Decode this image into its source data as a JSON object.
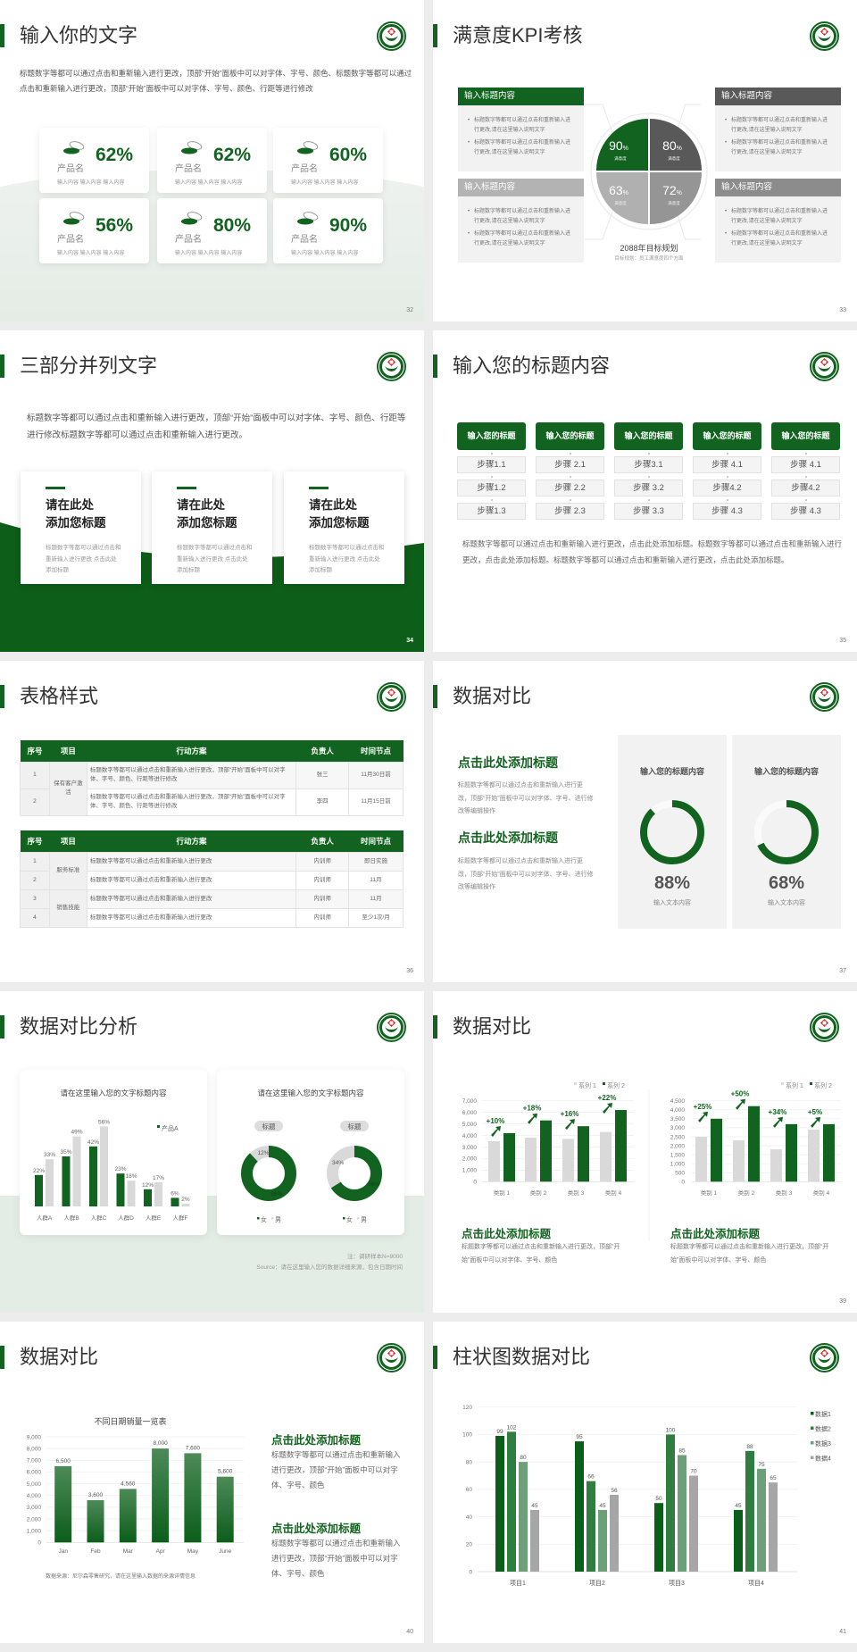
{
  "colors": {
    "brand_green": "#12631f",
    "dark_gray": "#595959",
    "mid_gray": "#8c8c8c",
    "light_gray": "#d9d9d9"
  },
  "logo_icon": "hospital-emblem-icon",
  "slides": [
    {
      "page": "32",
      "title": "输入你的文字",
      "body": "标题数字等都可以通过点击和重新输入进行更改，顶部“开始”面板中可以对字体、字号、颜色、标题数字等都可以通过点击和重新输入进行更改，顶部“开始”面板中可以对字体、字号、颜色、行距等进行修改",
      "cards": [
        {
          "name": "产品名",
          "value": "62%",
          "desc": "输入内容  输入内容  输入内容"
        },
        {
          "name": "产品名",
          "value": "62%",
          "desc": "输入内容  输入内容  输入内容"
        },
        {
          "name": "产品名",
          "value": "60%",
          "desc": "输入内容  输入内容  输入内容"
        },
        {
          "name": "产品名",
          "value": "56%",
          "desc": "输入内容  输入内容  输入内容"
        },
        {
          "name": "产品名",
          "value": "80%",
          "desc": "输入内容  输入内容  输入内容"
        },
        {
          "name": "产品名",
          "value": "90%",
          "desc": "输入内容  输入内容  输入内容"
        }
      ]
    },
    {
      "page": "33",
      "title": "满意度KPI考核",
      "boxes": [
        {
          "heading": "输入标题内容",
          "color": "#12631f",
          "bullets": [
            "标题数字等都可以通过点击和重新输入进行更改,请在这里输入说明文字",
            "标题数字等都可以通过点击和重新输入进行更改,请在这里输入说明文字"
          ]
        },
        {
          "heading": "输入标题内容",
          "color": "#595959",
          "bullets": [
            "标题数字等都可以通过点击和重新输入进行更改,请在这里输入说明文字",
            "标题数字等都可以通过点击和重新输入进行更改,请在这里输入说明文字"
          ]
        },
        {
          "heading": "输入标题内容",
          "color": "#b3b3b3",
          "bullets": [
            "标题数字等都可以通过点击和重新输入进行更改,请在这里输入说明文字",
            "标题数字等都可以通过点击和重新输入进行更改,请在这里输入说明文字"
          ]
        },
        {
          "heading": "输入标题内容",
          "color": "#8c8c8c",
          "bullets": [
            "标题数字等都可以通过点击和重新输入进行更改,请在这里输入说明文字",
            "标题数字等都可以通过点击和重新输入进行更改,请在这里输入说明文字"
          ]
        }
      ],
      "quadrants": [
        {
          "value": "90",
          "unit": "%",
          "label": "满意度",
          "color": "#12631f"
        },
        {
          "value": "80",
          "unit": "%",
          "label": "满意度",
          "color": "#595959"
        },
        {
          "value": "63",
          "unit": "%",
          "label": "满意度",
          "color": "#b0b0b0"
        },
        {
          "value": "72",
          "unit": "%",
          "label": "满意度",
          "color": "#959595"
        }
      ],
      "plan_title": "2088年目标规划",
      "plan_sub": "目标规划：员工满意度四个方面"
    },
    {
      "page": "34",
      "title": "三部分并列文字",
      "body": "标题数字等都可以通过点击和重新输入进行更改，顶部“开始”面板中可以对字体、字号、颜色、行距等进行修改标题数字等都可以通过点击和重新输入进行更改。",
      "cards": [
        {
          "line1": "请在此处",
          "line2": "添加您标题",
          "desc": "标题数字等都可以通过点击和重新输入进行更改 点击此处添加标题"
        },
        {
          "line1": "请在此处",
          "line2": "添加您标题",
          "desc": "标题数字等都可以通过点击和重新输入进行更改 点击此处添加标题"
        },
        {
          "line1": "请在此处",
          "line2": "添加您标题",
          "desc": "标题数字等都可以通过点击和重新输入进行更改 点击此处添加标题"
        }
      ]
    },
    {
      "page": "35",
      "title": "输入您的标题内容",
      "columns": [
        {
          "header": "输入您的标题",
          "steps": [
            "步骤1.1",
            "步骤1.2",
            "步骤1.3"
          ]
        },
        {
          "header": "输入您的标题",
          "steps": [
            "步骤 2.1",
            "步骤 2.2",
            "步骤 2.3"
          ]
        },
        {
          "header": "输入您的标题",
          "steps": [
            "步骤3.1",
            "步骤 3.2",
            "步骤 3.3"
          ]
        },
        {
          "header": "输入您的标题",
          "steps": [
            "步骤 4.1",
            "步骤4.2",
            "步骤 4.3"
          ]
        },
        {
          "header": "输入您的标题",
          "steps": [
            "步骤 4.1",
            "步骤4.2",
            "步骤 4.3"
          ]
        }
      ],
      "body": "标题数字等都可以通过点击和重新输入进行更改，点击此处添加标题。标题数字等都可以通过点击和重新输入进行更改，点击此处添加标题。标题数字等都可以通过点击和重新输入进行更改，点击此处添加标题。"
    },
    {
      "page": "36",
      "title": "表格样式",
      "tables": [
        {
          "headers": [
            "序号",
            "项目",
            "行动方案",
            "负责人",
            "时间节点"
          ],
          "groups": [
            {
              "item": "保有客户激活",
              "rows": [
                {
                  "no": "1",
                  "plan": "标题数字等都可以通过点击和重新输入进行更改，顶部“开始”面板中可以对字体、字号、颜色、行距等进行修改",
                  "owner": "张三",
                  "due": "11月30日前"
                },
                {
                  "no": "2",
                  "plan": "标题数字等都可以通过点击和重新输入进行更改，顶部“开始”面板中可以对字体、字号、颜色、行距等进行修改",
                  "owner": "李四",
                  "due": "11月15日前"
                }
              ]
            }
          ]
        },
        {
          "headers": [
            "序号",
            "项目",
            "行动方案",
            "负责人",
            "时间节点"
          ],
          "groups": [
            {
              "item": "服务标准",
              "rows": [
                {
                  "no": "1",
                  "plan": "标题数字等都可以通过点击和重新输入进行更改",
                  "owner": "内训师",
                  "due": "即日实施"
                },
                {
                  "no": "2",
                  "plan": "标题数字等都可以通过点击和重新输入进行更改",
                  "owner": "内训师",
                  "due": "11月"
                }
              ]
            },
            {
              "item": "销售技能",
              "rows": [
                {
                  "no": "3",
                  "plan": "标题数字等都可以通过点击和重新输入进行更改",
                  "owner": "内训师",
                  "due": "11月"
                },
                {
                  "no": "4",
                  "plan": "标题数字等都可以通过点击和重新输入进行更改",
                  "owner": "内训师",
                  "due": "至少1次/月"
                }
              ]
            }
          ]
        }
      ]
    },
    {
      "page": "37",
      "title": "数据对比",
      "items": [
        {
          "heading": "点击此处添加标题",
          "body": "标题数字等都可以通过点击和重新输入进行更改，顶部“开始”面板中可以对字体、字号、进行修改等编辑操作"
        },
        {
          "heading": "点击此处添加标题",
          "body": "标题数字等都可以通过点击和重新输入进行更改，顶部“开始”面板中可以对字体、字号、进行修改等编辑操作"
        }
      ],
      "panels": [
        {
          "title": "输入您的标题内容",
          "value": "88%",
          "percent": 88,
          "label": "输入文本内容"
        },
        {
          "title": "输入您的标题内容",
          "value": "68%",
          "percent": 68,
          "label": "输入文本内容"
        }
      ]
    },
    {
      "page": "38",
      "title": "数据对比分析",
      "note": "注：调研样本N=9000",
      "source": "Source：请在这里输入您的数据详细来源，包含日期时间"
    },
    {
      "page": "39",
      "title": "数据对比",
      "texts": [
        {
          "heading": "点击此处添加标题",
          "body": "标题数字等都可以通过点击和重新输入进行更改，顶部“开始”面板中可以对字体、字号、颜色"
        },
        {
          "heading": "点击此处添加标题",
          "body": "标题数字等都可以通过点击和重新输入进行更改，顶部“开始”面板中可以对字体、字号、颜色"
        }
      ]
    },
    {
      "page": "40",
      "title": "数据对比",
      "source": "数据来源：尼尔森零售研究，请在这里输入数据的来源详情信息",
      "texts": [
        {
          "heading": "点击此处添加标题",
          "body": "标题数字等都可以通过点击和重新输入进行更改，顶部“开始”面板中可以对字体、字号、颜色"
        },
        {
          "heading": "点击此处添加标题",
          "body": "标题数字等都可以通过点击和重新输入进行更改，顶部“开始”面板中可以对字体、字号、颜色"
        }
      ]
    },
    {
      "page": "41",
      "title": "柱状图数据对比"
    }
  ],
  "chart_data": [
    {
      "slide": "38",
      "type": "bar",
      "title": "请在这里输入您的文字标题内容",
      "categories": [
        "人群A",
        "人群B",
        "人群C",
        "人群D",
        "人群E",
        "人群F"
      ],
      "series": [
        {
          "name": "产品A",
          "values": [
            22,
            35,
            42,
            23,
            12,
            6
          ],
          "labels": [
            "22%",
            "35%",
            "42%",
            "23%",
            "12%",
            "6%"
          ],
          "color": "#12631f"
        },
        {
          "values": [
            33,
            49,
            56,
            18,
            17,
            2
          ],
          "labels": [
            "33%",
            "49%",
            "56%",
            "18%",
            "17%",
            "2%"
          ],
          "color": "#d9d9d9"
        }
      ],
      "ylim": [
        0,
        60
      ],
      "grid": false,
      "legend": "top-right"
    },
    {
      "slide": "38",
      "type": "pie",
      "variant": "donut",
      "panel_title": "请在这里输入您的文字标题内容",
      "title": "标题",
      "categories": [
        "女",
        "男"
      ],
      "values": [
        88,
        12
      ],
      "labels": [
        "88%",
        "12%"
      ],
      "colors": [
        "#12631f",
        "#d9d9d9"
      ],
      "legend": "bottom"
    },
    {
      "slide": "38",
      "type": "pie",
      "variant": "donut",
      "title": "标题",
      "categories": [
        "女",
        "男"
      ],
      "values": [
        66,
        34
      ],
      "labels": [
        "66%",
        "34%"
      ],
      "colors": [
        "#12631f",
        "#d9d9d9"
      ],
      "legend": "bottom"
    },
    {
      "slide": "39",
      "type": "bar",
      "categories": [
        "类别 1",
        "类别 2",
        "类别 3",
        "类别 4"
      ],
      "series": [
        {
          "name": "系列 1",
          "values": [
            3500,
            3800,
            3700,
            4300
          ],
          "color": "#d9d9d9"
        },
        {
          "name": "系列 2",
          "values": [
            4200,
            5300,
            4800,
            6200
          ],
          "color": "#12631f"
        }
      ],
      "growth_labels": [
        "+10%",
        "+18%",
        "+16%",
        "+22%"
      ],
      "ylim": [
        0,
        7000
      ],
      "yticks": [
        "0",
        "1,000",
        "2,000",
        "3,000",
        "4,000",
        "5,000",
        "6,000",
        "7,000"
      ],
      "grid": true,
      "legend": "top-right"
    },
    {
      "slide": "39",
      "type": "bar",
      "categories": [
        "类别 1",
        "类别 2",
        "类别 3",
        "类别 4"
      ],
      "series": [
        {
          "name": "系列 1",
          "values": [
            2500,
            2300,
            1800,
            2900
          ],
          "color": "#d9d9d9"
        },
        {
          "name": "系列 2",
          "values": [
            3500,
            4200,
            3200,
            3200
          ],
          "color": "#12631f"
        }
      ],
      "growth_labels": [
        "+25%",
        "+50%",
        "+34%",
        "+5%"
      ],
      "ylim": [
        0,
        4500
      ],
      "yticks": [
        "0",
        "500",
        "1,000",
        "1,500",
        "2,000",
        "2,500",
        "3,000",
        "3,500",
        "4,000",
        "4,500"
      ],
      "grid": true,
      "legend": "top-right"
    },
    {
      "slide": "40",
      "type": "bar",
      "title": "不同日期销量一览表",
      "categories": [
        "Jan",
        "Feb",
        "Mar",
        "Apr",
        "May",
        "June"
      ],
      "series": [
        {
          "values": [
            6500,
            3600,
            4560,
            8000,
            7600,
            5600
          ],
          "labels": [
            "6,500",
            "3,600",
            "4,560",
            "8,000",
            "7,600",
            "5,600"
          ],
          "color": "#12631f"
        }
      ],
      "ylim": [
        0,
        9000
      ],
      "yticks": [
        "0",
        "1,000",
        "2,000",
        "3,000",
        "4,000",
        "5,000",
        "6,000",
        "7,000",
        "8,000",
        "9,000"
      ],
      "grid": true
    },
    {
      "slide": "41",
      "type": "bar",
      "categories": [
        "项目1",
        "项目2",
        "项目3",
        "项目4"
      ],
      "series": [
        {
          "name": "数据1",
          "values": [
            99,
            95,
            50,
            45
          ],
          "color": "#0b5e1a"
        },
        {
          "name": "数据2",
          "values": [
            102,
            66,
            100,
            88
          ],
          "color": "#2f7d40"
        },
        {
          "name": "数据3",
          "values": [
            80,
            45,
            85,
            75
          ],
          "color": "#6da078"
        },
        {
          "name": "数据4",
          "values": [
            45,
            56,
            70,
            65
          ],
          "color": "#a6a6a6"
        }
      ],
      "ylim": [
        0,
        120
      ],
      "yticks": [
        "0",
        "20",
        "40",
        "60",
        "80",
        "100",
        "120"
      ],
      "grid": true,
      "legend": "right"
    }
  ]
}
